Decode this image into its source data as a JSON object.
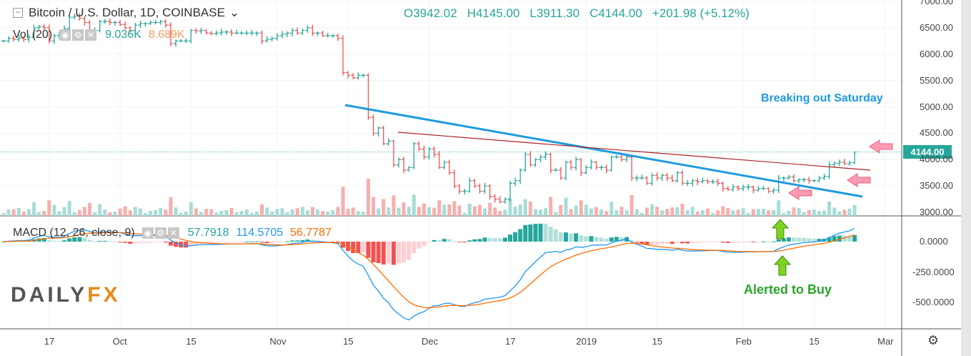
{
  "header": {
    "symbol": "Bitcoin / U.S. Dollar, 1D, COINBASE",
    "open": "O3942.02",
    "high": "H4145.00",
    "low": "L3911.30",
    "close": "C4144.00",
    "change": "+201.98 (+5.12%)"
  },
  "volume_indicator": {
    "label": "Vol (20)",
    "value": "9.036K",
    "ma": "8.689K"
  },
  "macd_indicator": {
    "label": "MACD (12, 26, close, 9)",
    "hist": "57.7918",
    "macd": "114.5705",
    "signal": "56.7787"
  },
  "last_price_label": "4144.00",
  "annotations": {
    "breakout": "Breaking out Saturday",
    "alert": "Alerted to Buy"
  },
  "logo": {
    "left": "DAILY",
    "right": "FX"
  },
  "colors": {
    "up": "#26a69a",
    "down": "#ef5350",
    "macd": "#2196f3",
    "signal": "#ff6d00",
    "trend_blue": "#1e9be0",
    "trend_red": "#b22222",
    "arrow_pink": "#ff9ab5",
    "arrow_green": "#7ed321"
  },
  "chart_data": {
    "type": "ohlc",
    "title": "Bitcoin / U.S. Dollar, 1D, COINBASE",
    "start_date": "2018-09-08",
    "end_date": "2019-02-23",
    "closes": [
      6250,
      6300,
      6280,
      6300,
      6280,
      6320,
      6500,
      6520,
      6500,
      6250,
      6350,
      6380,
      6480,
      6700,
      6720,
      6680,
      6600,
      6450,
      6450,
      6620,
      6620,
      6600,
      6600,
      6560,
      6500,
      6450,
      6550,
      6580,
      6580,
      6600,
      6600,
      6620,
      6550,
      6200,
      6250,
      6250,
      6250,
      6450,
      6440,
      6450,
      6400,
      6390,
      6400,
      6420,
      6420,
      6400,
      6400,
      6400,
      6400,
      6400,
      6400,
      6250,
      6280,
      6300,
      6350,
      6380,
      6400,
      6450,
      6400,
      6450,
      6500,
      6400,
      6400,
      6350,
      6350,
      6350,
      6300,
      5650,
      5600,
      5550,
      5600,
      5600,
      4800,
      4500,
      4600,
      4300,
      4350,
      3900,
      4000,
      3800,
      3850,
      4300,
      4200,
      4050,
      4200,
      4100,
      3850,
      3950,
      3750,
      3500,
      3400,
      3400,
      3600,
      3500,
      3400,
      3500,
      3300,
      3250,
      3200,
      3250,
      3550,
      3600,
      3800,
      4100,
      3900,
      4000,
      4050,
      4100,
      3800,
      3800,
      3650,
      3950,
      3850,
      4000,
      3750,
      3850,
      3950,
      3850,
      3850,
      3800,
      4050,
      4050,
      4000,
      4050,
      3650,
      3650,
      3650,
      3550,
      3700,
      3650,
      3700,
      3650,
      3600,
      3750,
      3550,
      3550,
      3600,
      3580,
      3600,
      3580,
      3580,
      3550,
      3450,
      3430,
      3480,
      3450,
      3480,
      3480,
      3420,
      3450,
      3450,
      3400,
      3420,
      3650,
      3650,
      3670,
      3600,
      3620,
      3620,
      3600,
      3600,
      3650,
      3680,
      3900,
      3930,
      3950,
      3920,
      3942.02,
      4144
    ],
    "last_bar": {
      "open": 3942.02,
      "high": 4145.0,
      "low": 3911.3,
      "close": 4144.0
    },
    "price_ticks": [
      "7000.00",
      "6500.00",
      "6000.00",
      "5500.00",
      "5000.00",
      "4500.00",
      "4000.00",
      "3500.00",
      "3000.00"
    ],
    "macd_ticks": [
      "0.0000",
      "-250.0000",
      "-500.0000"
    ],
    "x_ticks": [
      {
        "label": "17",
        "i": 9
      },
      {
        "label": "Oct",
        "i": 23
      },
      {
        "label": "15",
        "i": 37
      },
      {
        "label": "Nov",
        "i": 54
      },
      {
        "label": "15",
        "i": 68
      },
      {
        "label": "Dec",
        "i": 84
      },
      {
        "label": "17",
        "i": 100
      },
      {
        "label": "2019",
        "i": 115
      },
      {
        "label": "15",
        "i": 129
      },
      {
        "label": "Feb",
        "i": 146
      },
      {
        "label": "15",
        "i": 160
      },
      {
        "label": "Mar",
        "i": 174
      }
    ],
    "ylim": [
      3000,
      7000
    ],
    "macd_params": {
      "fast": 12,
      "slow": 26,
      "signal": 9
    }
  }
}
